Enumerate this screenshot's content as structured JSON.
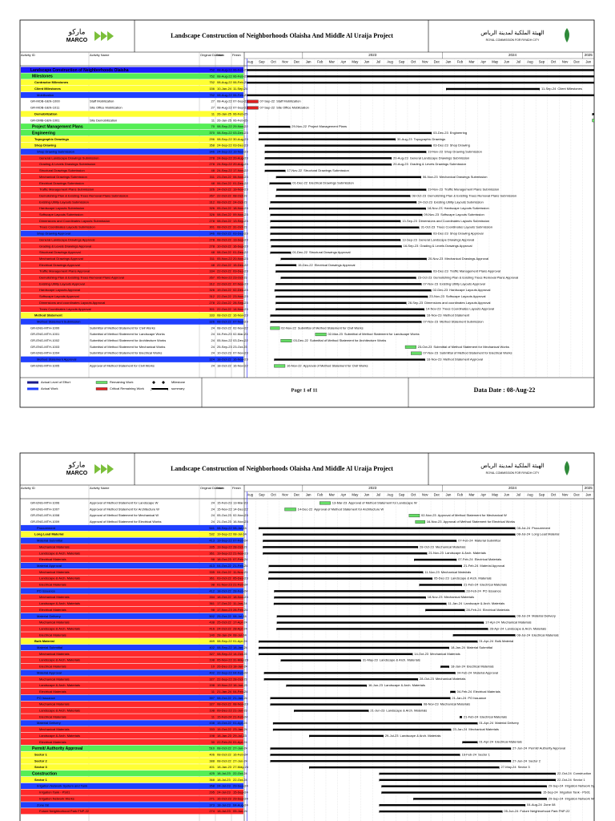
{
  "header": {
    "logo_ar": "مارکو",
    "logo_en": "MARCO",
    "title": "Landscape Construction of Neighborhoods Olaisha And Middle Al Uraija Project",
    "client_ar": "الهيئة الملكية لمدينة الرياض",
    "client_en": "ROYAL COMMISSION FOR RIYADH CITY"
  },
  "columns": [
    "Activity ID",
    "Activity Name",
    "Original Duration",
    "Start",
    "Finish"
  ],
  "timeline": {
    "years": [
      "2023",
      "2024",
      "2025"
    ],
    "months": [
      "Aug",
      "Sep",
      "Oct",
      "Nov",
      "Dec",
      "Jan",
      "Feb",
      "Mar",
      "Apr",
      "May",
      "Jun",
      "Jul",
      "Aug",
      "Sep",
      "Oct",
      "Nov",
      "Dec",
      "Jan",
      "Feb",
      "Mar",
      "Apr",
      "May",
      "Jun",
      "Jul",
      "Aug",
      "Sep",
      "Oct",
      "Nov",
      "Dec",
      "Jan"
    ]
  },
  "legend": [
    "Actual Level of Effort",
    "Actual Work",
    "Remaining Work",
    "Critical Remaining Work",
    "Milestone",
    "summary"
  ],
  "pages": [
    {
      "footer": {
        "page": "Page 1 of 11",
        "date": "Data Date : 08-Aug-22"
      },
      "rows": [
        {
          "name": "Landscape Construction of Neighborhoods Olaisha",
          "dur": 752,
          "start": "08-Aug-22",
          "finish": "06-Feb-25",
          "level": "proj"
        },
        {
          "name": "Milestones",
          "dur": 752,
          "start": "08-Aug-22",
          "finish": "06-Feb-25",
          "level": "l1"
        },
        {
          "name": "Contractor Milestones",
          "dur": 752,
          "start": "08-Aug-22",
          "finish": "06-Feb-25",
          "level": "l2"
        },
        {
          "name": "Client Milestones",
          "dur": 156,
          "start": "10-Jan-24",
          "finish": "11-Sep-24",
          "level": "l2"
        },
        {
          "name": "Mobilization",
          "dur": 752,
          "start": "08-Aug-22",
          "finish": "06-Feb-25",
          "level": "l3"
        },
        {
          "id": "GR-MOB-GEN-1000",
          "name": "Staff Mobilization",
          "dur": 27,
          "start": "08-Aug-22",
          "finish": "07-Sep-22",
          "level": "crit"
        },
        {
          "id": "GR-MOB-GEN-1011",
          "name": "Site Office Mobilization",
          "dur": 27,
          "start": "08-Aug-22",
          "finish": "07-Sep-22",
          "level": "crit"
        },
        {
          "name": "Demobilization",
          "dur": 11,
          "start": "26-Jan-25",
          "finish": "06-Feb-25",
          "level": "l2"
        },
        {
          "id": "GR-DMB-GEN-1001",
          "name": "Site Demobilization",
          "dur": 11,
          "start": "26-Jan-25",
          "finish": "06-Feb-25",
          "level": "act"
        },
        {
          "name": "Project Management Plans",
          "dur": 70,
          "start": "08-Sep-22",
          "finish": "29-Nov-22",
          "level": "l1"
        },
        {
          "name": "Engineering",
          "dur": 370,
          "start": "08-Sep-22",
          "finish": "03-Dec-23",
          "level": "l1"
        },
        {
          "name": "Topographic Drawings",
          "dur": 296,
          "start": "08-Sep-22",
          "finish": "30-Aug-23",
          "level": "l2"
        },
        {
          "name": "Shop Drawing",
          "dur": 358,
          "start": "24-Sep-22",
          "finish": "03-Dec-23",
          "level": "l2"
        },
        {
          "name": "Shop Drawing Submission",
          "dur": 346,
          "start": "24-Sep-22",
          "finish": "19-Nov-23",
          "level": "l3"
        },
        {
          "name": "General Landscape Drawings Submission",
          "dur": 278,
          "start": "24-Sep-22",
          "finish": "20-Aug-23",
          "level": "l4"
        },
        {
          "name": "Grading & Levels Drawings Submission",
          "dur": 278,
          "start": "24-Sep-22",
          "finish": "20-Aug-23",
          "level": "l4"
        },
        {
          "name": "Structural Drawings Submission",
          "dur": 48,
          "start": "24-Sep-22",
          "finish": "17-Nov-22",
          "level": "l4"
        },
        {
          "name": "Mechanical Drawings Submission",
          "dur": 311,
          "start": "23-Oct-22",
          "finish": "06-Nov-23",
          "level": "l4"
        },
        {
          "name": "Electrical Drawings Submission",
          "dur": 48,
          "start": "06-Oct-22",
          "finish": "01-Dec-22",
          "level": "l4"
        },
        {
          "name": "Traffic Management Plans Submission",
          "dur": 326,
          "start": "24-Oct-22",
          "finish": "19-Nov-23",
          "level": "l4"
        },
        {
          "name": "Demolishing Plan & Existing Trees Removal Plans Submission",
          "dur": 267,
          "start": "22-Oct-22",
          "finish": "08-Oct-23",
          "level": "l4"
        },
        {
          "name": "Existing Utility Layouts Submission",
          "dur": 312,
          "start": "08-Oct-22",
          "finish": "24-Oct-23",
          "level": "l4"
        },
        {
          "name": "Hardscape Layouts Submission",
          "dur": 326,
          "start": "05-Oct-22",
          "finish": "18-Nov-23",
          "level": "l4"
        },
        {
          "name": "Softscape Layouts Submission",
          "dur": 326,
          "start": "08-Oct-22",
          "finish": "09-Nov-23",
          "level": "l4"
        },
        {
          "name": "Dimensions and Coordinates Layouts Submission",
          "dur": 278,
          "start": "08-Oct-22",
          "finish": "13-Sep-23",
          "level": "l4"
        },
        {
          "name": "Trees Coordinates Layouts Submission",
          "dur": 301,
          "start": "08-Oct-22",
          "finish": "31-Oct-23",
          "level": "l4"
        },
        {
          "name": "Shop Drawing Approval",
          "dur": 346,
          "start": "08-Oct-22",
          "finish": "03-Dec-23",
          "level": "l3"
        },
        {
          "name": "General Landscape Drawings Approval",
          "dur": 278,
          "start": "08-Oct-22",
          "finish": "13-Sep-23",
          "level": "l4"
        },
        {
          "name": "Grading & Levels Drawings Approval",
          "dur": 278,
          "start": "10-Oct-22",
          "finish": "16-Sep-23",
          "level": "l4"
        },
        {
          "name": "Structural Drawings Approval",
          "dur": 48,
          "start": "08-Oct-22",
          "finish": "01-Dec-22",
          "level": "l4"
        },
        {
          "name": "Mechanical Drawings Approval",
          "dur": 311,
          "start": "05-Nov-22",
          "finish": "20-Nov-23",
          "level": "l4"
        },
        {
          "name": "Electrical Drawings Approval",
          "dur": 48,
          "start": "22-Oct-22",
          "finish": "15-Dec-22",
          "level": "l4"
        },
        {
          "name": "Traffic Management Plans Approval",
          "dur": 334,
          "start": "22-Oct-22",
          "finish": "03-Dec-23",
          "level": "l4"
        },
        {
          "name": "Demolishing Plan & Existing Trees Removal Plans Approval",
          "dur": 267,
          "start": "05-Nov-22",
          "finish": "23-Oct-23",
          "level": "l4"
        },
        {
          "name": "Existing Utility Layouts Approval",
          "dur": 312,
          "start": "22-Oct-22",
          "finish": "07-Nov-23",
          "level": "l4"
        },
        {
          "name": "Hardscape Layouts Approval",
          "dur": 326,
          "start": "19-Oct-22",
          "finish": "02-Dec-23",
          "level": "l4"
        },
        {
          "name": "Softscape Layouts Approval",
          "dur": 312,
          "start": "22-Oct-22",
          "finish": "23-Nov-23",
          "level": "l4"
        },
        {
          "name": "Dimensions and coordinates Layouts Approval",
          "dur": 278,
          "start": "22-Oct-22",
          "finish": "28-Sep-23",
          "level": "l4"
        },
        {
          "name": "Trees Coordinates Layouts Approval",
          "dur": 301,
          "start": "22-Oct-22",
          "finish": "14-Nov-23",
          "level": "l4"
        },
        {
          "name": "Method Statement",
          "dur": 333,
          "start": "08-Oct-22",
          "finish": "16-Nov-23",
          "level": "l2"
        },
        {
          "name": "Method Statement Submission",
          "dur": 326,
          "start": "08-Oct-22",
          "finish": "07-Nov-23",
          "level": "l3"
        },
        {
          "id": "GR-ENG-MTH-1000",
          "name": "Submittal of Method Statement for Civil Works",
          "dur": 24,
          "start": "08-Oct-22",
          "finish": "02-Nov-22",
          "level": "act"
        },
        {
          "id": "GR-ENG-MTH-1001",
          "name": "Submittal of Method Statement for Landscape Works",
          "dur": 24,
          "start": "04-Feb-23",
          "finish": "02-Mar-23",
          "level": "act"
        },
        {
          "id": "GR-ENG-MTH-1002",
          "name": "Submittal of Method Statement for Architecture Works",
          "dur": 24,
          "start": "05-Nov-22",
          "finish": "03-Dec-22",
          "level": "act"
        },
        {
          "id": "GR-ENG-MTH-1003",
          "name": "Submittal of Method Statement for Mechanical Works",
          "dur": 24,
          "start": "25-Sep-23",
          "finish": "23-Oct-23",
          "level": "act"
        },
        {
          "id": "GR-ENG-MTH-1004",
          "name": "Submittal of Method Statement for Electrical Works",
          "dur": 24,
          "start": "10-Oct-23",
          "finish": "07-Nov-23",
          "level": "act"
        },
        {
          "name": "Method Statement Approval",
          "dur": 324,
          "start": "18-Oct-22",
          "finish": "16-Nov-23",
          "level": "l3"
        },
        {
          "id": "GR-ENG-MTH-1005",
          "name": "Approval of Method Statement for Civil Works",
          "dur": 24,
          "start": "18-Oct-22",
          "finish": "16-Nov-22",
          "level": "act"
        }
      ]
    },
    {
      "rows": [
        {
          "id": "GR-ENG-MTH-1006",
          "name": "Approval of Method Statement for Landscape W",
          "dur": 24,
          "start": "15-Feb-23",
          "finish": "13-Mar-23",
          "level": "act"
        },
        {
          "id": "GR-ENG-MTH-1007",
          "name": "Approval of Method Statement for Architecture W",
          "dur": 24,
          "start": "15-Nov-22",
          "finish": "14-Dec-22",
          "level": "act"
        },
        {
          "id": "GR-ENG-MTH-1008",
          "name": "Approval of Method Statement for Mechanical W",
          "dur": 24,
          "start": "05-Oct-23",
          "finish": "02-Nov-23",
          "level": "act"
        },
        {
          "id": "GR-ENG-MTH-1009",
          "name": "Approval of Method Statement for Electrical Works",
          "dur": 24,
          "start": "21-Oct-23",
          "finish": "16-Nov-23",
          "level": "act"
        },
        {
          "name": "Procurement",
          "dur": 541,
          "start": "08-Sep-22",
          "finish": "08-Jul-24",
          "level": "l3"
        },
        {
          "name": "Long Lead Material",
          "dur": 532,
          "start": "19-Sep-22",
          "finish": "08-Jul-24",
          "level": "l2"
        },
        {
          "name": "Material Submittal",
          "dur": 413,
          "start": "19-Sep-22",
          "finish": "07-Feb-24",
          "level": "l3"
        },
        {
          "name": "Mechanical Materials",
          "dur": 335,
          "start": "19-Sep-22",
          "finish": "28-Oct-23",
          "level": "l4"
        },
        {
          "name": "Landscape & Arch. Materials",
          "dur": 361,
          "start": "19-Sep-22",
          "finish": "21-Nov-23",
          "level": "l4"
        },
        {
          "name": "Electrical Materials",
          "dur": 98,
          "start": "18-Oct-23",
          "finish": "07-Feb-24",
          "level": "l4"
        },
        {
          "name": "Material Approval",
          "dur": 413,
          "start": "04-Oct-22",
          "finish": "21-Feb-24",
          "level": "l3"
        },
        {
          "name": "Mechanical Materials",
          "dur": 335,
          "start": "04-Oct-22",
          "finish": "11-Nov-23",
          "level": "l4"
        },
        {
          "name": "Landscape & Arch. Materials",
          "dur": 361,
          "start": "03-Oct-22",
          "finish": "05-Dec-23",
          "level": "l4"
        },
        {
          "name": "Electrical Materials",
          "dur": 98,
          "start": "01-Nov-23",
          "finish": "21-Feb-24",
          "level": "l4"
        },
        {
          "name": "PO Issuance",
          "dur": 412,
          "start": "18-Oct-22",
          "finish": "28-Feb-24",
          "level": "l3"
        },
        {
          "name": "Mechanical Materials",
          "dur": 334,
          "start": "18-Oct-22",
          "finish": "18-Nov-23",
          "level": "l4"
        },
        {
          "name": "Landscape & Arch. Materials",
          "dur": 361,
          "start": "17-Oct-22",
          "finish": "11-Jan-24",
          "level": "l4"
        },
        {
          "name": "Electrical Materials",
          "dur": 98,
          "start": "17-Nov-23",
          "finish": "28-Feb-24",
          "level": "l4"
        },
        {
          "name": "Material Delivery",
          "dur": 502,
          "start": "25-Oct-22",
          "finish": "08-Jul-24",
          "level": "l3"
        },
        {
          "name": "Mechanical Materials",
          "dur": 438,
          "start": "25-Oct-22",
          "finish": "17-Apr-24",
          "level": "l4"
        },
        {
          "name": "Landscape & Arch. Materials",
          "dur": 416,
          "start": "24-Oct-22",
          "finish": "28-Apr-24",
          "level": "l4"
        },
        {
          "name": "Electrical Materials",
          "dur": 140,
          "start": "28-Jan-24",
          "finish": "08-Jul-24",
          "level": "l4"
        },
        {
          "name": "Bulk Material",
          "dur": 469,
          "start": "08-Sep-22",
          "finish": "01-Apr-24",
          "level": "l2"
        },
        {
          "name": "Material Submittal",
          "dur": 402,
          "start": "08-Sep-22",
          "finish": "18-Jan-24",
          "level": "l3"
        },
        {
          "name": "Mechanical Materials",
          "dur": 327,
          "start": "08-Sep-22",
          "finish": "14-Oct-23",
          "level": "l4"
        },
        {
          "name": "Landscape & Arch. Materials",
          "dur": 198,
          "start": "05-Nov-22",
          "finish": "31-May-23",
          "level": "l4"
        },
        {
          "name": "Electrical Materials",
          "dur": 10,
          "start": "26-Dec-23",
          "finish": "18-Jan-24",
          "level": "l4"
        },
        {
          "name": "Material Approval",
          "dur": 402,
          "start": "22-Sep-22",
          "finish": "04-Feb-24",
          "level": "l3"
        },
        {
          "name": "Mechanical Materials",
          "dur": 327,
          "start": "22-Sep-22",
          "finish": "28-Oct-23",
          "level": "l4"
        },
        {
          "name": "Landscape & Arch. Materials",
          "dur": 198,
          "start": "19-Nov-22",
          "finish": "16-Jun-23",
          "level": "l4"
        },
        {
          "name": "Electrical Materials",
          "dur": 11,
          "start": "21-Jan-24",
          "finish": "04-Feb-24",
          "level": "l4"
        },
        {
          "name": "PO Issuance",
          "dur": 397,
          "start": "08-Oct-22",
          "finish": "21-Jan-24",
          "level": "l3"
        },
        {
          "name": "Mechanical Materials",
          "dur": 327,
          "start": "08-Oct-22",
          "finish": "08-Nov-23",
          "level": "l4"
        },
        {
          "name": "Landscape & Arch. Materials",
          "dur": 198,
          "start": "09-Dec-22",
          "finish": "21-Jun-23",
          "level": "l4"
        },
        {
          "name": "Electrical Materials",
          "dur": 11,
          "start": "15-Feb-24",
          "finish": "21-Feb-24",
          "level": "l4"
        },
        {
          "name": "Material Delivery",
          "dur": 438,
          "start": "15-Oct-22",
          "finish": "01-Apr-24",
          "level": "l3"
        },
        {
          "name": "Mechanical Materials",
          "dur": 333,
          "start": "15-Oct-22",
          "finish": "23-Jan-24",
          "level": "l4"
        },
        {
          "name": "Landscape & Arch. Materials",
          "dur": 198,
          "start": "18-Jan-23",
          "finish": "29-Jul-23",
          "level": "l4"
        },
        {
          "name": "Electrical Materials",
          "dur": 30,
          "start": "22-Feb-24",
          "finish": "01-Apr-24",
          "level": "l4"
        },
        {
          "name": "Permit/ Authority Approval",
          "dur": 510,
          "start": "08-Oct-22",
          "finish": "27-Jun-24",
          "level": "l1"
        },
        {
          "name": "Sector 1",
          "dur": 406,
          "start": "08-Oct-22",
          "finish": "16-Feb-24",
          "level": "l2"
        },
        {
          "name": "Sector 2",
          "dur": 388,
          "start": "08-Oct-22",
          "finish": "27-Jun-24",
          "level": "l2"
        },
        {
          "name": "Sector 3",
          "dur": 401,
          "start": "18-Jan-23",
          "finish": "27-May-24",
          "level": "l2"
        },
        {
          "name": "Construction",
          "dur": 425,
          "start": "18-Jul-23",
          "finish": "22-Oct-24",
          "level": "l1"
        },
        {
          "name": "Sector 1",
          "dur": 368,
          "start": "18-Jul-23",
          "finish": "22-Oct-24",
          "level": "l2"
        },
        {
          "name": "Irrigation Network System and Tank",
          "dur": 358,
          "start": "24-Jul-23",
          "finish": "29-Sep-24",
          "level": "l3"
        },
        {
          "name": "Irrigation Tank - PS01",
          "dur": 295,
          "start": "24-Jul-23",
          "finish": "15-Sep-24",
          "level": "l4"
        },
        {
          "name": "Irrigation Network Works",
          "dur": 271,
          "start": "16-Oct-23",
          "finish": "29-Sep-24",
          "level": "l4"
        },
        {
          "name": "Zone 08",
          "dur": 373,
          "start": "18-Jul-23",
          "finish": "04-Aug-24",
          "level": "l3"
        },
        {
          "name": "Future Neighborhood Park FNP-22",
          "dur": 274,
          "start": "18-Jul-23",
          "finish": "05-Jun-24",
          "level": "l4"
        }
      ]
    }
  ]
}
